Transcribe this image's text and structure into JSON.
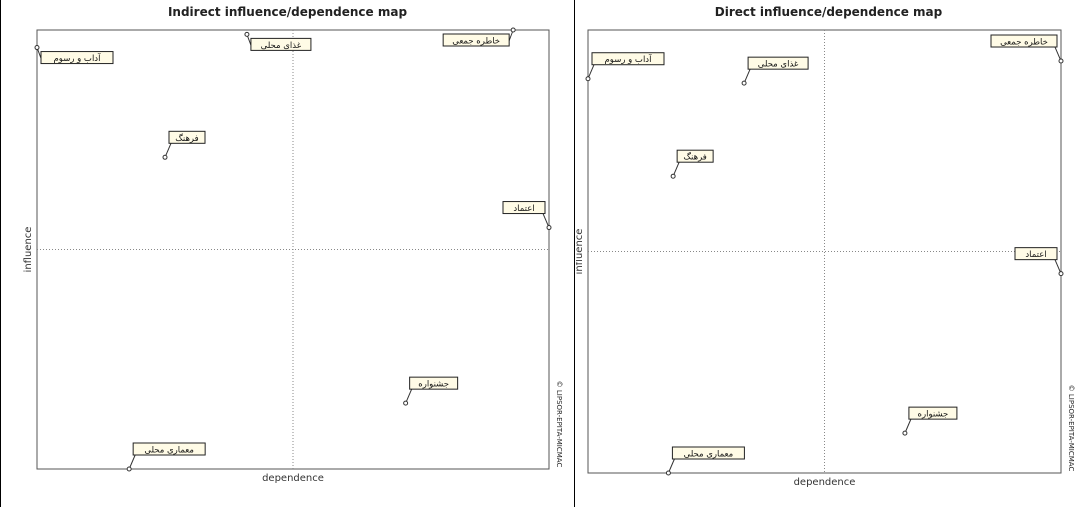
{
  "chart_data": [
    {
      "type": "scatter",
      "title": "Indirect influence/dependence map",
      "xlabel": "dependence",
      "ylabel": "influence",
      "side_text": "© LIPSOR-EPITA-MICMAC",
      "xlim": [
        0,
        1
      ],
      "ylim": [
        0,
        1
      ],
      "grid": "dotted cross at axis midpoints",
      "points": [
        {
          "label": "آداب و رسوم",
          "x": 0.0,
          "y": 0.96
        },
        {
          "label": "غذای محلی",
          "x": 0.41,
          "y": 0.99
        },
        {
          "label": "خاطره جمعی",
          "x": 0.93,
          "y": 1.0
        },
        {
          "label": "فرهنگ",
          "x": 0.25,
          "y": 0.71
        },
        {
          "label": "اعتماد",
          "x": 1.0,
          "y": 0.55
        },
        {
          "label": "جشنواره",
          "x": 0.72,
          "y": 0.15
        },
        {
          "label": "معماری محلی",
          "x": 0.18,
          "y": 0.0
        }
      ]
    },
    {
      "type": "scatter",
      "title": "Direct influence/dependence map",
      "xlabel": "dependence",
      "ylabel": "influence",
      "side_text": "© LIPSOR-EPITA-MICMAC",
      "xlim": [
        0,
        1
      ],
      "ylim": [
        0,
        1
      ],
      "grid": "dotted cross at axis midpoints",
      "points": [
        {
          "label": "آداب و رسوم",
          "x": 0.0,
          "y": 0.89
        },
        {
          "label": "غذای محلی",
          "x": 0.33,
          "y": 0.88
        },
        {
          "label": "خاطره جمعی",
          "x": 1.0,
          "y": 0.93
        },
        {
          "label": "فرهنگ",
          "x": 0.18,
          "y": 0.67
        },
        {
          "label": "اعتماد",
          "x": 1.0,
          "y": 0.45
        },
        {
          "label": "جشنواره",
          "x": 0.67,
          "y": 0.09
        },
        {
          "label": "معماری محلی",
          "x": 0.17,
          "y": 0.0
        }
      ]
    }
  ]
}
